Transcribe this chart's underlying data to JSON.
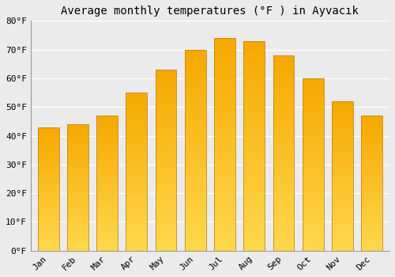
{
  "title": "Average monthly temperatures (°F ) in Ayvacık",
  "months": [
    "Jan",
    "Feb",
    "Mar",
    "Apr",
    "May",
    "Jun",
    "Jul",
    "Aug",
    "Sep",
    "Oct",
    "Nov",
    "Dec"
  ],
  "values": [
    43,
    44,
    47,
    55,
    63,
    70,
    74,
    73,
    68,
    60,
    52,
    47
  ],
  "bar_color_top": "#F5A800",
  "bar_color_bottom": "#FFD84D",
  "bar_edge_color": "#C8870A",
  "ylim": [
    0,
    80
  ],
  "yticks": [
    0,
    10,
    20,
    30,
    40,
    50,
    60,
    70,
    80
  ],
  "ytick_labels": [
    "0°F",
    "10°F",
    "20°F",
    "30°F",
    "40°F",
    "50°F",
    "60°F",
    "70°F",
    "80°F"
  ],
  "background_color": "#ebebeb",
  "grid_color": "#ffffff",
  "title_fontsize": 10,
  "tick_fontsize": 8,
  "bar_width": 0.72
}
